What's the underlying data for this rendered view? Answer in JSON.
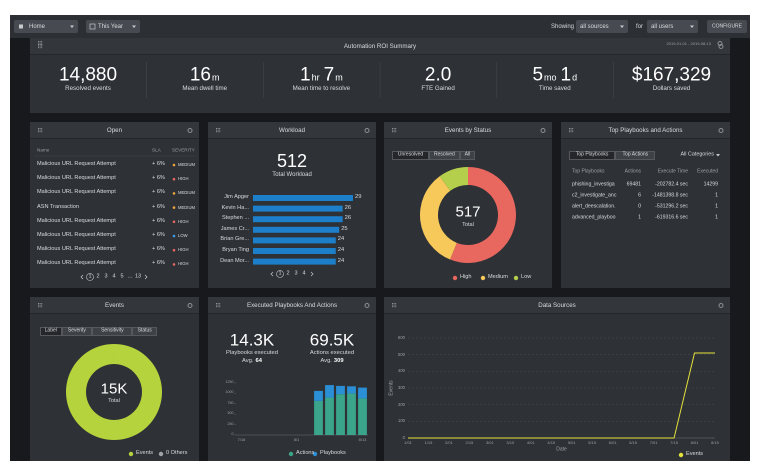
{
  "topbar": {
    "home": "Home",
    "period": "This Year",
    "showing": "Showing",
    "sources": "all sources",
    "for": "for",
    "users": "all users",
    "configure": "CONFIGURE"
  },
  "roi": {
    "title": "Automation ROI Summary",
    "range": "2019-01-01 - 2019-08-13",
    "metrics": [
      {
        "parts": [
          {
            "value": "14,880"
          }
        ],
        "label": "Resolved events"
      },
      {
        "parts": [
          {
            "value": "16",
            "unit": "m"
          }
        ],
        "label": "Mean dwell time"
      },
      {
        "parts": [
          {
            "value": "1",
            "unit": "hr"
          },
          {
            "value": "7",
            "unit": "m"
          }
        ],
        "label": "Mean time to resolve"
      },
      {
        "parts": [
          {
            "value": "2.0"
          }
        ],
        "label": "FTE Gained"
      },
      {
        "parts": [
          {
            "value": "5",
            "unit": "mo"
          },
          {
            "value": "1",
            "unit": "d"
          }
        ],
        "label": "Time saved"
      },
      {
        "parts": [
          {
            "value": "$167,329"
          }
        ],
        "label": "Dollars saved"
      }
    ]
  },
  "open": {
    "title": "Open",
    "columns": [
      "Name",
      "SLA",
      "SEVERITY"
    ],
    "rows": [
      [
        "Malicious URL Request Attempt",
        "+ 6%",
        "MEDIUM"
      ],
      [
        "Malicious URL Request Attempt",
        "+ 6%",
        "HIGH"
      ],
      [
        "Malicious URL Request Attempt",
        "+ 6%",
        "MEDIUM"
      ],
      [
        "ASN Transaction",
        "+ 6%",
        "MEDIUM"
      ],
      [
        "Malicious URL Request Attempt",
        "+ 6%",
        "HIGH"
      ],
      [
        "Malicious URL Request Attempt",
        "+ 6%",
        "LOW"
      ],
      [
        "Malicious URL Request Attempt",
        "+ 6%",
        "HIGH"
      ],
      [
        "Malicious URL Request Attempt",
        "+ 6%",
        "HIGH"
      ]
    ],
    "severity_colors": {
      "MEDIUM": "#f0a43a",
      "HIGH": "#e8675f",
      "LOW": "#3b9ee8"
    },
    "pages": [
      "1",
      "2",
      "3",
      "4",
      "5",
      "...",
      "13"
    ],
    "active_page": 0
  },
  "workload": {
    "title": "Workload",
    "total": 512,
    "total_label": "Total Workload",
    "people": [
      "Jim Apger",
      "Kevin Ha...",
      "Stephen ...",
      "James Cr...",
      "Brian Gre...",
      "Bryan Ting",
      "Dean Mor..."
    ],
    "values": [
      29,
      26,
      26,
      25,
      24,
      24,
      24
    ],
    "color": "#1d7fc9",
    "pages": [
      "1",
      "2",
      "3",
      "4"
    ],
    "active_page": 0
  },
  "status": {
    "title": "Events by Status",
    "tabs": [
      "Unresolved",
      "Resolved",
      "All"
    ],
    "active_tab": 0,
    "total": 517,
    "total_label": "Total",
    "series": [
      {
        "name": "High",
        "color": "#e8675f",
        "value": 290
      },
      {
        "name": "Medium",
        "color": "#f7c85a",
        "value": 175
      },
      {
        "name": "Low",
        "color": "#b3cf4b",
        "value": 52
      }
    ]
  },
  "playbooks": {
    "title": "Top Playbooks and Actions",
    "tabs": [
      "Top Playbooks",
      "Top Actions"
    ],
    "active_tab": 0,
    "filter": "All Categories",
    "columns": [
      "Top Playbooks",
      "Actions",
      "Execute Time",
      "Executed"
    ],
    "rows": [
      [
        "phishing_investiga",
        "69481",
        "-202782.4 sec",
        "14299"
      ],
      [
        "c2_investigate_anc",
        "6",
        "-1481398.8 sec",
        "1"
      ],
      [
        "alert_deescalation.",
        "0",
        "-531296.2 sec",
        "1"
      ],
      [
        "advanced_playboo",
        "1",
        "-619316.6 sec",
        "1"
      ]
    ]
  },
  "events": {
    "title": "Events",
    "tabs": [
      "Label",
      "Severity",
      "Sensitivity",
      "Status"
    ],
    "active_tab": 0,
    "total": "15K",
    "total_label": "Total",
    "legend": [
      {
        "name": "Events",
        "color": "#b5d33c"
      },
      {
        "name": "0 Others",
        "color": "#a0a4aa"
      }
    ]
  },
  "executed": {
    "title": "Executed Playbooks And Actions",
    "stats": [
      {
        "value": "14.3K",
        "label": "Playbooks executed",
        "avg_label": "Avg.",
        "avg": 64
      },
      {
        "value": "69.5K",
        "label": "Actions executed",
        "avg_label": "Avg.",
        "avg": 309
      }
    ],
    "chart": {
      "type": "bar",
      "stacked": true,
      "categories": [
        "7/16",
        null,
        null,
        null,
        null,
        "8/1",
        null,
        null,
        null,
        null,
        null,
        "8/13"
      ],
      "series": [
        {
          "name": "Actions",
          "color": "#3aa58a",
          "values": [
            0,
            0,
            0,
            0,
            0,
            0,
            0,
            820,
            900,
            980,
            1000,
            880
          ]
        },
        {
          "name": "Playbooks",
          "color": "#2b8fd6",
          "values": [
            0,
            0,
            0,
            0,
            0,
            0,
            0,
            240,
            300,
            200,
            170,
            260
          ]
        }
      ],
      "ylim": [
        0,
        1250
      ],
      "yticks": [
        0,
        250,
        500,
        750,
        1000,
        1250
      ]
    }
  },
  "datasources": {
    "title": "Data Sources",
    "chart": {
      "type": "line",
      "categories": [
        "1/01",
        "1/15",
        "2/01",
        "2/15",
        "3/01",
        "3/15",
        "4/01",
        "4/15",
        "5/01",
        "5/15",
        "6/01",
        "6/15",
        "7/01",
        "7/15",
        "8/01",
        "8/15"
      ],
      "series": [
        {
          "name": "Events",
          "color": "#e5e23b",
          "values": [
            0,
            0,
            0,
            0,
            0,
            0,
            0,
            0,
            0,
            0,
            0,
            0,
            0,
            0,
            510,
            510
          ]
        }
      ],
      "ylim": [
        0,
        600
      ],
      "yticks": [
        0,
        100,
        200,
        300,
        400,
        500,
        600
      ],
      "y_label": "Events",
      "x_label": "Date",
      "grid": "dashed"
    }
  }
}
